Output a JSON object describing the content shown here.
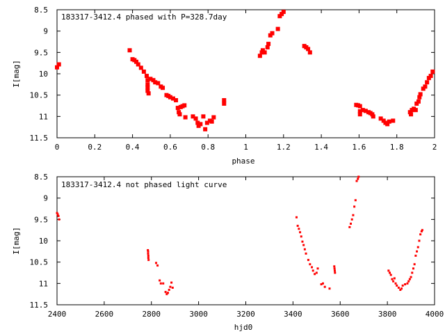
{
  "chart_data": [
    {
      "type": "scatter",
      "title": "183317-3412.4 phased with P=328.7day",
      "xlabel": "phase",
      "ylabel": "I[mag]",
      "xlim": [
        0,
        2
      ],
      "ylim": [
        11.5,
        8.5
      ],
      "y_inverted": true,
      "grid": false,
      "legend": "none",
      "marker_color": "#ff0000",
      "x_ticks": [
        "0",
        "0.2",
        "0.4",
        "0.6",
        "0.8",
        "1",
        "1.2",
        "1.4",
        "1.6",
        "1.8",
        "2"
      ],
      "y_ticks": [
        "8.5",
        "9",
        "9.5",
        "10",
        "10.5",
        "11",
        "11.5"
      ],
      "series": [
        {
          "points": [
            [
              0.0,
              9.85
            ],
            [
              0.01,
              9.78
            ],
            [
              0.385,
              9.45
            ],
            [
              0.4,
              9.66
            ],
            [
              0.41,
              9.68
            ],
            [
              0.42,
              9.72
            ],
            [
              0.43,
              9.78
            ],
            [
              0.445,
              9.86
            ],
            [
              0.46,
              9.95
            ],
            [
              0.475,
              10.05
            ],
            [
              0.48,
              10.15
            ],
            [
              0.48,
              10.25
            ],
            [
              0.48,
              10.32
            ],
            [
              0.48,
              10.4
            ],
            [
              0.485,
              10.46
            ],
            [
              0.495,
              10.12
            ],
            [
              0.51,
              10.15
            ],
            [
              0.52,
              10.2
            ],
            [
              0.535,
              10.22
            ],
            [
              0.55,
              10.3
            ],
            [
              0.56,
              10.33
            ],
            [
              0.58,
              10.5
            ],
            [
              0.59,
              10.52
            ],
            [
              0.6,
              10.55
            ],
            [
              0.615,
              10.58
            ],
            [
              0.63,
              10.62
            ],
            [
              0.64,
              10.8
            ],
            [
              0.645,
              10.9
            ],
            [
              0.65,
              10.95
            ],
            [
              0.655,
              10.78
            ],
            [
              0.665,
              10.76
            ],
            [
              0.675,
              10.74
            ],
            [
              0.68,
              11.02
            ],
            [
              0.72,
              11.0
            ],
            [
              0.735,
              11.05
            ],
            [
              0.745,
              11.15
            ],
            [
              0.75,
              11.22
            ],
            [
              0.76,
              11.18
            ],
            [
              0.775,
              11.0
            ],
            [
              0.785,
              11.3
            ],
            [
              0.795,
              11.15
            ],
            [
              0.81,
              11.1
            ],
            [
              0.82,
              11.12
            ],
            [
              0.83,
              11.02
            ],
            [
              0.885,
              10.62
            ],
            [
              0.885,
              10.7
            ],
            [
              1.075,
              9.58
            ],
            [
              1.085,
              9.5
            ],
            [
              1.09,
              9.45
            ],
            [
              1.1,
              9.5
            ],
            [
              1.115,
              9.38
            ],
            [
              1.12,
              9.3
            ],
            [
              1.13,
              9.1
            ],
            [
              1.14,
              9.05
            ],
            [
              1.17,
              8.95
            ],
            [
              1.18,
              8.65
            ],
            [
              1.19,
              8.6
            ],
            [
              1.2,
              8.55
            ],
            [
              1.31,
              9.35
            ],
            [
              1.32,
              9.38
            ],
            [
              1.33,
              9.42
            ],
            [
              1.34,
              9.5
            ],
            [
              1.585,
              10.73
            ],
            [
              1.595,
              10.74
            ],
            [
              1.605,
              10.76
            ],
            [
              1.605,
              10.88
            ],
            [
              1.605,
              10.95
            ],
            [
              1.62,
              10.85
            ],
            [
              1.635,
              10.87
            ],
            [
              1.65,
              10.9
            ],
            [
              1.66,
              10.92
            ],
            [
              1.67,
              10.95
            ],
            [
              1.675,
              11.0
            ],
            [
              1.715,
              11.05
            ],
            [
              1.73,
              11.1
            ],
            [
              1.74,
              11.15
            ],
            [
              1.75,
              11.18
            ],
            [
              1.76,
              11.12
            ],
            [
              1.78,
              11.1
            ],
            [
              1.87,
              10.9
            ],
            [
              1.875,
              10.95
            ],
            [
              1.88,
              10.85
            ],
            [
              1.89,
              10.82
            ],
            [
              1.9,
              10.85
            ],
            [
              1.905,
              10.7
            ],
            [
              1.915,
              10.65
            ],
            [
              1.92,
              10.55
            ],
            [
              1.925,
              10.48
            ],
            [
              1.94,
              10.35
            ],
            [
              1.95,
              10.3
            ],
            [
              1.96,
              10.2
            ],
            [
              1.97,
              10.1
            ],
            [
              1.98,
              10.05
            ],
            [
              1.99,
              9.95
            ]
          ]
        }
      ]
    },
    {
      "type": "scatter",
      "title": "183317-3412.4 not phased light curve",
      "xlabel": "hjd0",
      "ylabel": "I[mag]",
      "xlim": [
        2400,
        4000
      ],
      "ylim": [
        11.5,
        8.5
      ],
      "y_inverted": true,
      "grid": false,
      "legend": "none",
      "marker_color": "#ff0000",
      "x_ticks": [
        "2400",
        "2600",
        "2800",
        "3000",
        "3200",
        "3400",
        "3600",
        "3800",
        "4000"
      ],
      "y_ticks": [
        "8.5",
        "9",
        "9.5",
        "10",
        "10.5",
        "11",
        "11.5"
      ],
      "series": [
        {
          "points": [
            [
              2400,
              9.35
            ],
            [
              2403,
              9.38
            ],
            [
              2406,
              9.42
            ],
            [
              2409,
              9.5
            ],
            [
              2785,
              10.22
            ],
            [
              2786,
              10.25
            ],
            [
              2786,
              10.3
            ],
            [
              2787,
              10.35
            ],
            [
              2787,
              10.4
            ],
            [
              2788,
              10.45
            ],
            [
              2820,
              10.52
            ],
            [
              2826,
              10.58
            ],
            [
              2835,
              10.93
            ],
            [
              2840,
              11.0
            ],
            [
              2850,
              11.0
            ],
            [
              2860,
              11.2
            ],
            [
              2865,
              11.25
            ],
            [
              2870,
              11.22
            ],
            [
              2875,
              11.15
            ],
            [
              2880,
              11.08
            ],
            [
              2885,
              10.98
            ],
            [
              2890,
              11.1
            ],
            [
              3415,
              9.45
            ],
            [
              3420,
              9.65
            ],
            [
              3425,
              9.72
            ],
            [
              3430,
              9.8
            ],
            [
              3435,
              9.9
            ],
            [
              3440,
              10.02
            ],
            [
              3445,
              10.1
            ],
            [
              3450,
              10.2
            ],
            [
              3455,
              10.3
            ],
            [
              3465,
              10.45
            ],
            [
              3472,
              10.55
            ],
            [
              3480,
              10.62
            ],
            [
              3485,
              10.7
            ],
            [
              3492,
              10.78
            ],
            [
              3500,
              10.75
            ],
            [
              3505,
              10.65
            ],
            [
              3520,
              11.02
            ],
            [
              3527,
              11.0
            ],
            [
              3535,
              11.08
            ],
            [
              3555,
              11.12
            ],
            [
              3575,
              10.6
            ],
            [
              3576,
              10.65
            ],
            [
              3577,
              10.7
            ],
            [
              3578,
              10.75
            ],
            [
              3640,
              9.68
            ],
            [
              3645,
              9.6
            ],
            [
              3650,
              9.5
            ],
            [
              3655,
              9.4
            ],
            [
              3660,
              9.2
            ],
            [
              3665,
              9.05
            ],
            [
              3670,
              8.6
            ],
            [
              3675,
              8.55
            ],
            [
              3678,
              8.5
            ],
            [
              3805,
              10.7
            ],
            [
              3810,
              10.75
            ],
            [
              3815,
              10.8
            ],
            [
              3820,
              10.9
            ],
            [
              3825,
              10.95
            ],
            [
              3830,
              10.88
            ],
            [
              3835,
              11.0
            ],
            [
              3840,
              11.05
            ],
            [
              3848,
              11.1
            ],
            [
              3855,
              11.15
            ],
            [
              3860,
              11.12
            ],
            [
              3865,
              11.05
            ],
            [
              3875,
              11.02
            ],
            [
              3885,
              11.0
            ],
            [
              3890,
              10.95
            ],
            [
              3895,
              10.9
            ],
            [
              3900,
              10.85
            ],
            [
              3905,
              10.75
            ],
            [
              3910,
              10.65
            ],
            [
              3915,
              10.55
            ],
            [
              3920,
              10.35
            ],
            [
              3925,
              10.25
            ],
            [
              3930,
              10.15
            ],
            [
              3935,
              10.0
            ],
            [
              3940,
              9.85
            ],
            [
              3945,
              9.78
            ],
            [
              3948,
              9.75
            ]
          ]
        }
      ]
    }
  ]
}
